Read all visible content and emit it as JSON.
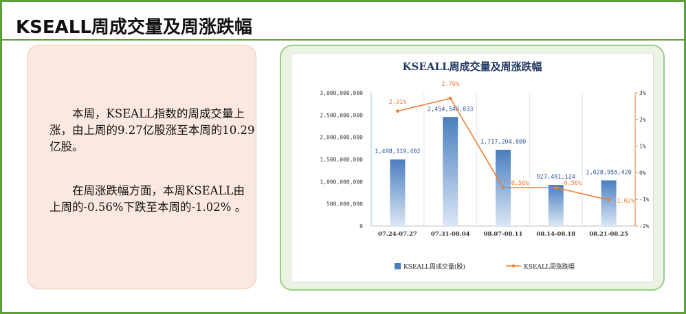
{
  "page": {
    "title": "KSEALL周成交量及周涨跌幅",
    "paragraphs": [
      "本周，KSEALL指数的周成交量上涨，由上周的9.27亿股涨至本周的10.29亿股。",
      "在周涨跌幅方面，本周KSEALL由上周的-0.56%下跌至本周的-1.02% 。"
    ]
  },
  "colors": {
    "frame": "#5aa03a",
    "bar": "#4a7ebf",
    "line": "#ed7d31",
    "title_text": "#1f3864"
  },
  "chart_data": {
    "type": "bar",
    "title": "KSEALL周成交量及周涨跌幅",
    "categories": [
      "07.24-07.27",
      "07.31-08.04",
      "08.07-08.11",
      "08.14-08.18",
      "08.21-08.25"
    ],
    "series": [
      {
        "name": "KSEALL周成交量(股)",
        "type": "bar",
        "axis": "left",
        "values": [
          1498319402,
          2454548033,
          1717204800,
          927481124,
          1028955420
        ],
        "labels": [
          "1,498,319,402",
          "2,454,548,033",
          "1,717,204,800",
          "927,481,124",
          "1,028,955,420"
        ]
      },
      {
        "name": "KSEALL周涨跌幅",
        "type": "line",
        "axis": "right",
        "values": [
          2.31,
          2.79,
          -0.56,
          -0.56,
          -1.02
        ],
        "labels": [
          "2.31%",
          "2.79%",
          "-0.56%",
          "-0.56%",
          "-1.02%"
        ]
      }
    ],
    "left_axis": {
      "ylim": [
        0,
        3000000000
      ],
      "ticks": [
        "0",
        "500,000,000",
        "1,000,000,000",
        "1,500,000,000",
        "2,000,000,000",
        "2,500,000,000",
        "3,000,000,000"
      ]
    },
    "right_axis": {
      "ylim": [
        -2,
        3
      ],
      "ticks": [
        "-2%",
        "-1%",
        "0%",
        "1%",
        "2%",
        "3%"
      ]
    },
    "legend": "bottom",
    "grid": "vertical"
  }
}
